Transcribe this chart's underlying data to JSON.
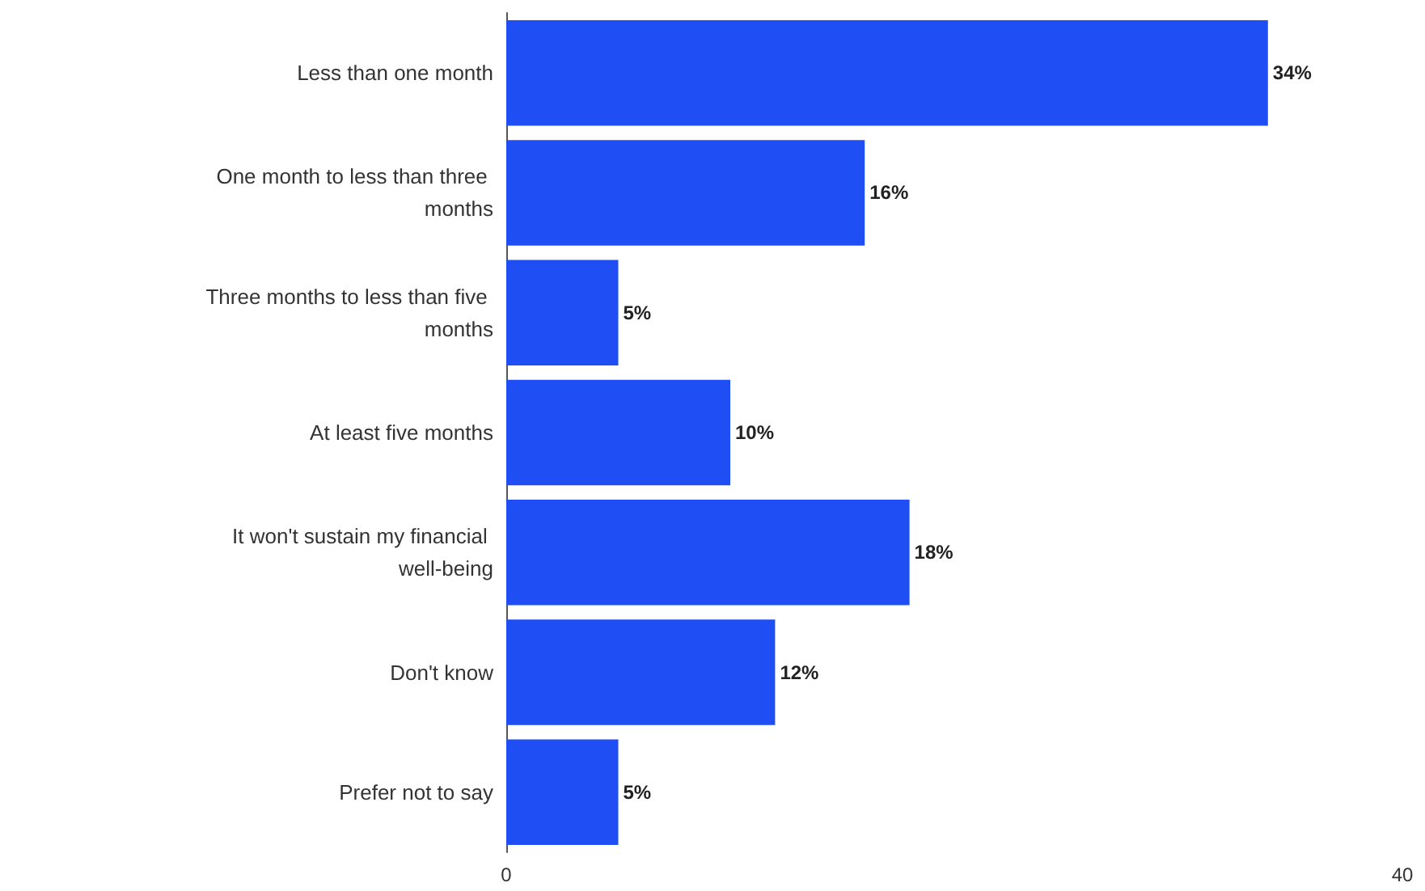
{
  "chart_data": {
    "type": "bar",
    "orientation": "horizontal",
    "categories": [
      "Less than one month",
      "One month to less than three months",
      "Three months to less than five months",
      "At least five months",
      "It won't sustain my financial well-being",
      "Don't know",
      "Prefer not to say"
    ],
    "values": [
      34,
      16,
      5,
      10,
      18,
      12,
      5
    ],
    "value_labels": [
      "34%",
      "16%",
      "5%",
      "10%",
      "18%",
      "12%",
      "5%"
    ],
    "color": "#1f4ef5",
    "xlim": [
      0,
      40
    ],
    "xticks": [
      0,
      40
    ],
    "grid": false
  }
}
